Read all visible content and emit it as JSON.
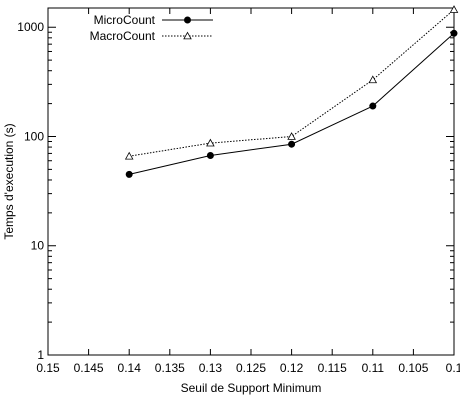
{
  "chart_data": {
    "type": "line",
    "title": "",
    "xlabel": "Seuil de Support Minimum",
    "ylabel": "Temps d'execution (s)",
    "xlim": [
      0.15,
      0.1
    ],
    "x_reversed": true,
    "ylim": [
      1,
      1500
    ],
    "y_scale": "log",
    "grid": false,
    "legend_position": "top-left",
    "x_ticks": [
      0.15,
      0.145,
      0.14,
      0.135,
      0.13,
      0.125,
      0.12,
      0.115,
      0.11,
      0.105,
      0.1
    ],
    "x_tick_labels": [
      "0.15",
      "0.145",
      "0.14",
      "0.135",
      "0.13",
      "0.125",
      "0.12",
      "0.115",
      "0.11",
      "0.105",
      "0.1"
    ],
    "y_ticks": [
      1,
      10,
      100,
      1000
    ],
    "y_tick_labels": [
      "1",
      "10",
      "100",
      "1000"
    ],
    "series": [
      {
        "name": "MicroCount",
        "style": "solid",
        "marker": "filled-circle",
        "color": "#000000",
        "x": [
          0.14,
          0.13,
          0.12,
          0.11,
          0.1
        ],
        "y": [
          45,
          67,
          85,
          190,
          880
        ]
      },
      {
        "name": "MacroCount",
        "style": "dotted",
        "marker": "open-triangle",
        "color": "#000000",
        "x": [
          0.14,
          0.13,
          0.12,
          0.11,
          0.1
        ],
        "y": [
          66,
          87,
          100,
          330,
          1450
        ]
      }
    ]
  }
}
